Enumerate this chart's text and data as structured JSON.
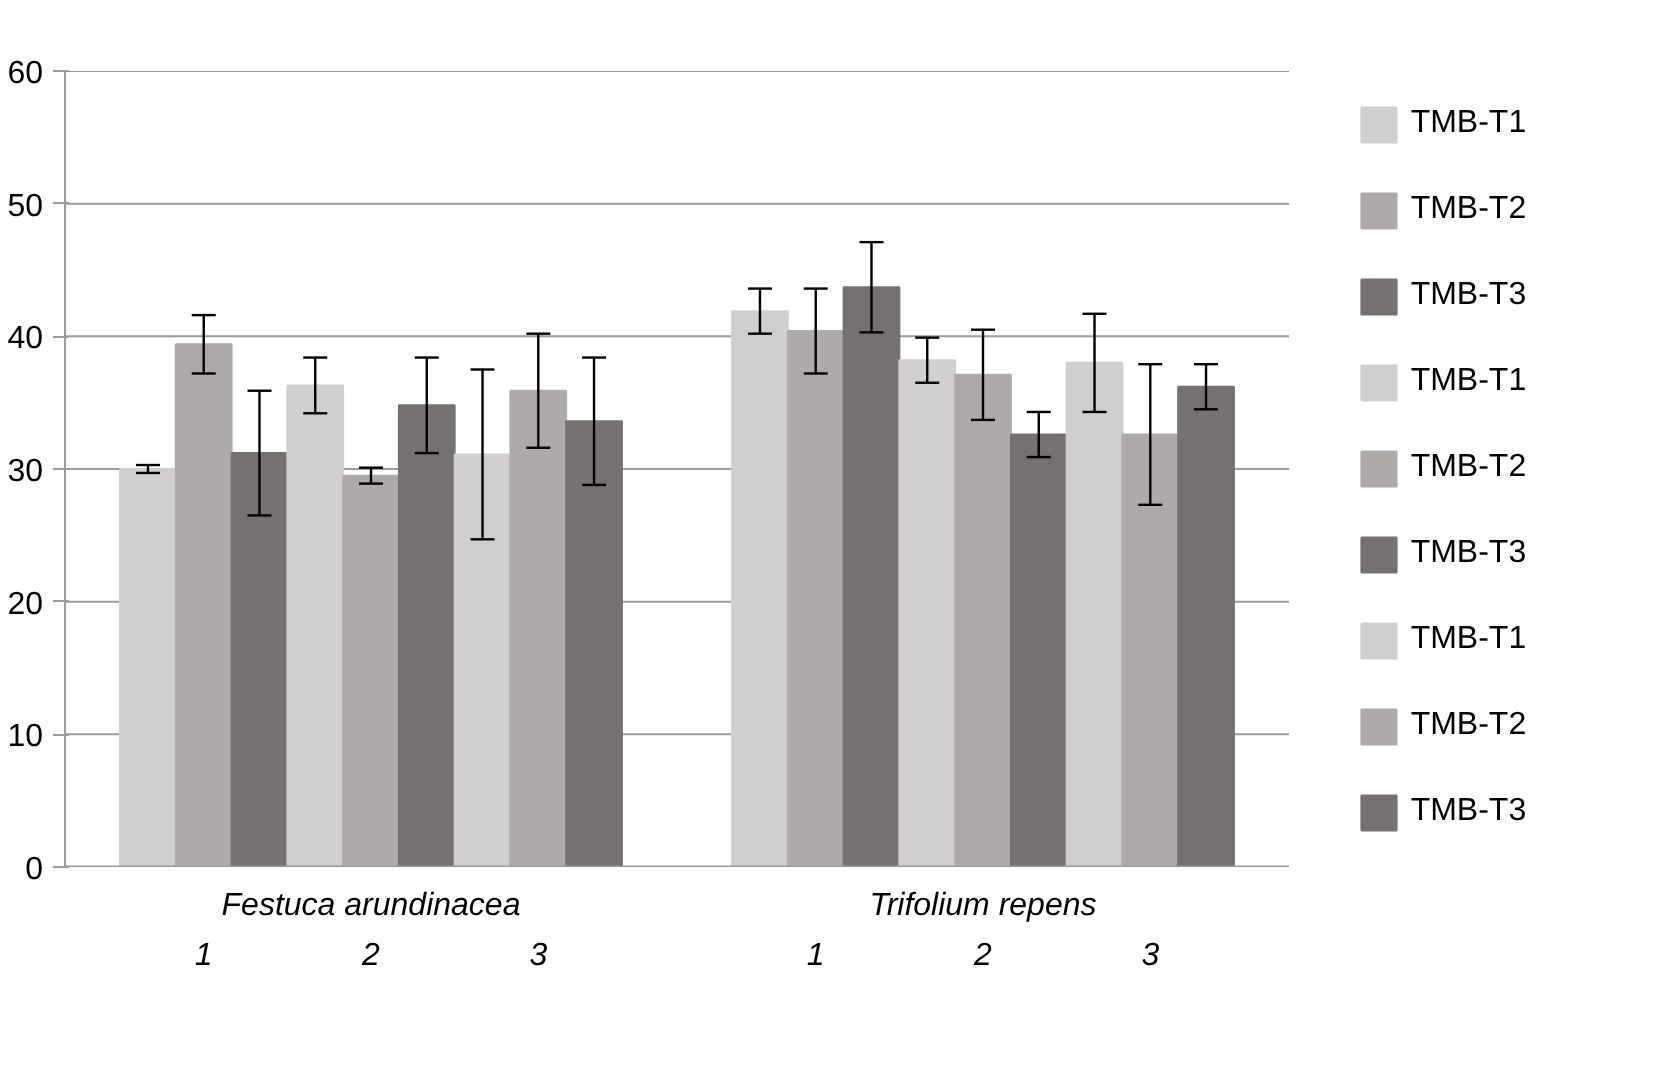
{
  "chart_data": {
    "type": "bar",
    "categories": [
      "Festuca arundinacea",
      "Trifolium repens"
    ],
    "annotations": [
      "1",
      "2",
      "3",
      "1",
      "2",
      "3"
    ],
    "series": [
      {
        "name": "TMB-T1",
        "color": "#d0cece",
        "values": [
          30.0,
          41.9
        ],
        "errors": [
          0.3,
          1.7
        ]
      },
      {
        "name": "TMB-T2",
        "color": "#aeaaaa",
        "values": [
          39.4,
          40.4
        ],
        "errors": [
          2.2,
          3.2
        ]
      },
      {
        "name": "TMB-T3",
        "color": "#767171",
        "values": [
          31.2,
          43.7
        ],
        "errors": [
          4.7,
          3.4
        ]
      },
      {
        "name": "TMB-T1",
        "color": "#d0cece",
        "values": [
          36.3,
          38.2
        ],
        "errors": [
          2.1,
          1.7
        ]
      },
      {
        "name": "TMB-T2",
        "color": "#aeaaaa",
        "values": [
          29.5,
          37.1
        ],
        "errors": [
          0.6,
          3.4
        ]
      },
      {
        "name": "TMB-T3",
        "color": "#767171",
        "values": [
          34.8,
          32.6
        ],
        "errors": [
          3.6,
          1.7
        ]
      },
      {
        "name": "TMB-T1",
        "color": "#d0cece",
        "values": [
          31.1,
          38.0
        ],
        "errors": [
          6.4,
          3.7
        ]
      },
      {
        "name": "TMB-T2",
        "color": "#aeaaaa",
        "values": [
          35.9,
          32.6
        ],
        "errors": [
          4.3,
          5.3
        ]
      },
      {
        "name": "TMB-T3",
        "color": "#767171",
        "values": [
          33.6,
          36.2
        ],
        "errors": [
          4.8,
          1.7
        ]
      }
    ],
    "ylim": [
      0,
      60
    ],
    "yticks": [
      0,
      10,
      20,
      30,
      40,
      50,
      60
    ],
    "grid": "y",
    "legend": "right"
  }
}
